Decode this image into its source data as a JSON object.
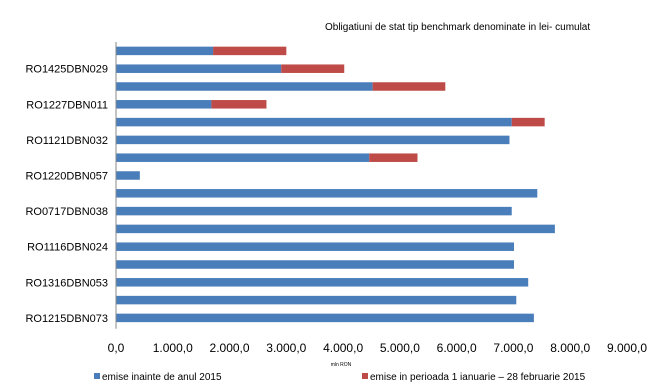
{
  "chart_data": {
    "type": "bar",
    "orientation": "horizontal",
    "stacked": true,
    "title": "Obligatiuni de stat tip benchmark denominate in lei- cumulat",
    "xlabel": "mln RON",
    "ylabel": "",
    "xlim": [
      0,
      9000
    ],
    "x_ticks": [
      0,
      1000,
      2000,
      3000,
      4000,
      5000,
      6000,
      7000,
      8000,
      9000
    ],
    "x_tick_labels": [
      "0,0",
      "1.000,0",
      "2.000,0",
      "3.000,0",
      "4.000,0",
      "5.000,0",
      "6.000,0",
      "7.000,0",
      "8.000,0",
      "9.000,0"
    ],
    "grid": false,
    "legend_position": "bottom",
    "categories": [
      "",
      "RO1425DBN029",
      "",
      "RO1227DBN011",
      "",
      "RO1121DBN032",
      "",
      "RO1220DBN057",
      "",
      "RO0717DBN038",
      "",
      "RO1116DBN024",
      "",
      "RO1316DBN053",
      "",
      "RO1215DBN073"
    ],
    "series": [
      {
        "name": "emise inainte de anul 2015",
        "color": "#4A7EBB",
        "values": [
          1710,
          2910,
          4520,
          1680,
          6970,
          6930,
          4460,
          420,
          7420,
          6970,
          7730,
          7010,
          7010,
          7260,
          7050,
          7360
        ]
      },
      {
        "name": "emise in perioada 1 ianuarie – 28 februarie 2015",
        "color": "#BE4B48",
        "values": [
          1290,
          1110,
          1280,
          970,
          580,
          0,
          850,
          0,
          0,
          0,
          0,
          0,
          0,
          0,
          0,
          0
        ]
      }
    ]
  }
}
